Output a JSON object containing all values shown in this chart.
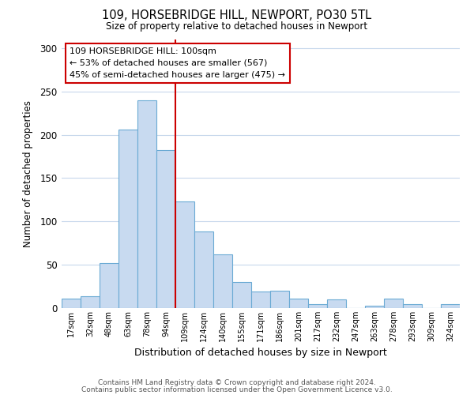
{
  "title": "109, HORSEBRIDGE HILL, NEWPORT, PO30 5TL",
  "subtitle": "Size of property relative to detached houses in Newport",
  "xlabel": "Distribution of detached houses by size in Newport",
  "ylabel": "Number of detached properties",
  "bar_color": "#c8daf0",
  "bar_edge_color": "#6aaad4",
  "categories": [
    "17sqm",
    "32sqm",
    "48sqm",
    "63sqm",
    "78sqm",
    "94sqm",
    "109sqm",
    "124sqm",
    "140sqm",
    "155sqm",
    "171sqm",
    "186sqm",
    "201sqm",
    "217sqm",
    "232sqm",
    "247sqm",
    "263sqm",
    "278sqm",
    "293sqm",
    "309sqm",
    "324sqm"
  ],
  "values": [
    11,
    14,
    52,
    206,
    240,
    182,
    123,
    88,
    62,
    30,
    19,
    20,
    11,
    5,
    10,
    0,
    3,
    11,
    5,
    0,
    5
  ],
  "ylim": [
    0,
    310
  ],
  "yticks": [
    0,
    50,
    100,
    150,
    200,
    250,
    300
  ],
  "marker_index": 6,
  "marker_label": "109 HORSEBRIDGE HILL: 100sqm",
  "annotation_line1": "← 53% of detached houses are smaller (567)",
  "annotation_line2": "45% of semi-detached houses are larger (475) →",
  "annotation_box_color": "#ffffff",
  "annotation_box_edge": "#cc0000",
  "marker_line_color": "#cc0000",
  "footer_line1": "Contains HM Land Registry data © Crown copyright and database right 2024.",
  "footer_line2": "Contains public sector information licensed under the Open Government Licence v3.0.",
  "background_color": "#ffffff",
  "grid_color": "#c8d8ec"
}
